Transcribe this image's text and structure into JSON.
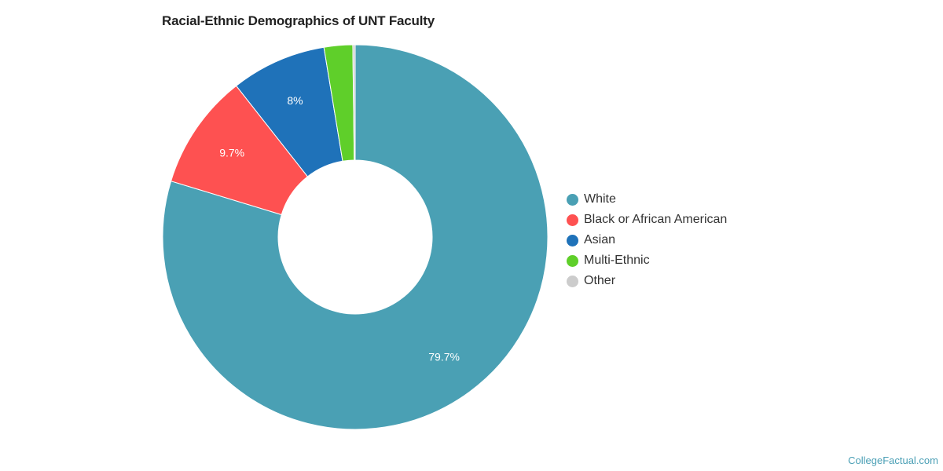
{
  "chart_data": {
    "type": "pie",
    "title": "Racial-Ethnic Demographics of UNT Faculty",
    "donut": true,
    "slices": [
      {
        "name": "White",
        "value": 79.7,
        "label": "79.7%",
        "color": "#4aa0b4"
      },
      {
        "name": "Black or African American",
        "value": 9.7,
        "label": "9.7%",
        "color": "#fe5151"
      },
      {
        "name": "Asian",
        "value": 8.0,
        "label": "8%",
        "color": "#1f72b9"
      },
      {
        "name": "Multi-Ethnic",
        "value": 2.4,
        "label": "",
        "color": "#5fcf2a"
      },
      {
        "name": "Other",
        "value": 0.2,
        "label": "",
        "color": "#cccccc"
      }
    ],
    "legend_position": "right"
  },
  "watermark": "CollegeFactual.com"
}
